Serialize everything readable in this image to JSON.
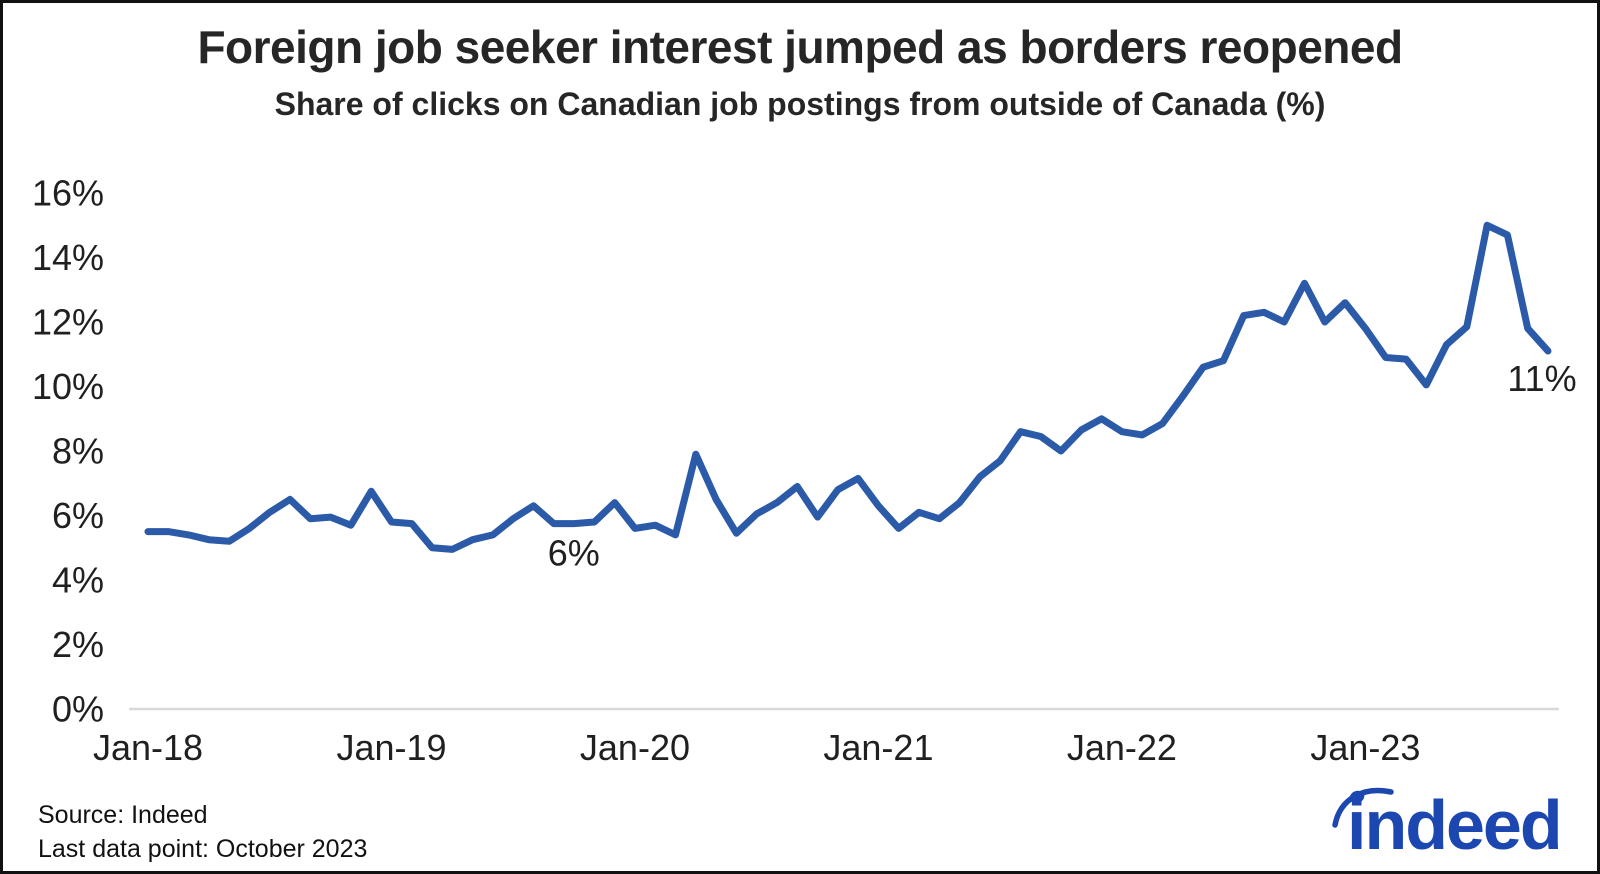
{
  "header": {
    "title": "Foreign job seeker interest jumped as borders reopened",
    "subtitle": "Share of clicks on Canadian job postings from outside of Canada (%)"
  },
  "footer": {
    "source_line1": "Source: Indeed",
    "source_line2": "Last data point: October 2023",
    "logo_text": "indeed"
  },
  "colors": {
    "line": "#2A5AA8",
    "logo_blue": "#1C46B0",
    "text": "#202020",
    "baseline_gray": "#D9D9D9"
  },
  "chart_data": {
    "type": "line",
    "title": "Foreign job seeker interest jumped as borders reopened",
    "subtitle": "Share of clicks on Canadian job postings from outside of Canada (%)",
    "unit": "%",
    "frequency": "monthly",
    "x_start": "Jan-2018",
    "x_end": "Oct-2023",
    "x_tick_labels": [
      "Jan-18",
      "Jan-19",
      "Jan-20",
      "Jan-21",
      "Jan-22",
      "Jan-23"
    ],
    "x_tick_month_index": [
      0,
      12,
      24,
      36,
      48,
      60
    ],
    "y_tick_labels": [
      "0%",
      "2%",
      "4%",
      "6%",
      "8%",
      "10%",
      "12%",
      "14%",
      "16%"
    ],
    "y_ticks": [
      0,
      2,
      4,
      6,
      8,
      10,
      12,
      14,
      16
    ],
    "ylim": [
      0,
      16.5
    ],
    "grid": "baseline-only",
    "legend": "none",
    "values": [
      5.5,
      5.5,
      5.4,
      5.25,
      5.2,
      5.6,
      6.1,
      6.5,
      5.9,
      5.95,
      5.7,
      6.75,
      5.8,
      5.75,
      5.0,
      4.95,
      5.25,
      5.4,
      5.9,
      6.3,
      5.75,
      5.75,
      5.8,
      6.4,
      5.6,
      5.7,
      5.4,
      7.9,
      6.5,
      5.45,
      6.05,
      6.4,
      6.9,
      5.95,
      6.8,
      7.15,
      6.3,
      5.6,
      6.1,
      5.9,
      6.4,
      7.2,
      7.7,
      8.6,
      8.45,
      8.0,
      8.65,
      9.0,
      8.6,
      8.5,
      8.85,
      9.7,
      10.6,
      10.8,
      12.2,
      12.3,
      12.0,
      13.2,
      12.0,
      12.6,
      11.8,
      10.9,
      10.85,
      10.05,
      11.3,
      11.85,
      15.0,
      14.7,
      11.8,
      11.1
    ],
    "annotations": [
      {
        "text": "6%",
        "month_index": 20
      },
      {
        "text": "11%",
        "month_index": 69
      }
    ]
  }
}
